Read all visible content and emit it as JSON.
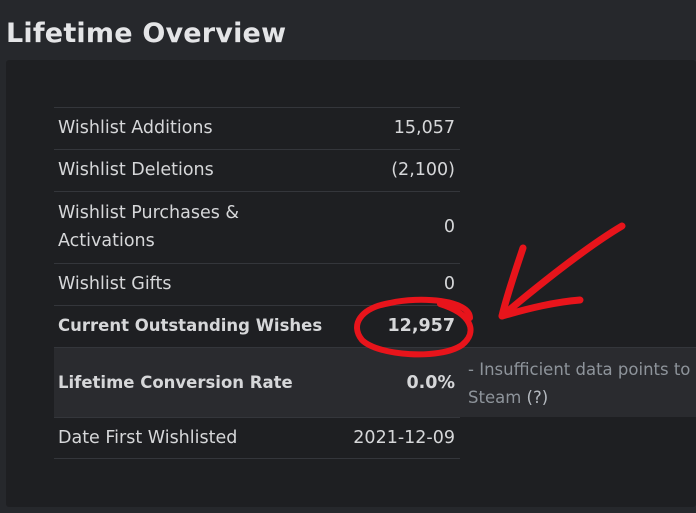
{
  "title": "Lifetime Overview",
  "table": {
    "rows": [
      [
        "Wishlist Additions",
        "15,057"
      ],
      [
        "Wishlist Deletions",
        "(2,100)"
      ],
      [
        "Wishlist Purchases & Activations",
        "0"
      ],
      [
        "Wishlist Gifts",
        "0"
      ],
      [
        "Current Outstanding Wishes",
        "12,957"
      ],
      [
        "Lifetime Conversion Rate",
        "0.0%"
      ],
      [
        "Date First Wishlisted",
        "2021-12-09"
      ]
    ]
  },
  "note": {
    "line1": "- Insufficient data points to",
    "line2": "Steam",
    "help": "(?)"
  }
}
